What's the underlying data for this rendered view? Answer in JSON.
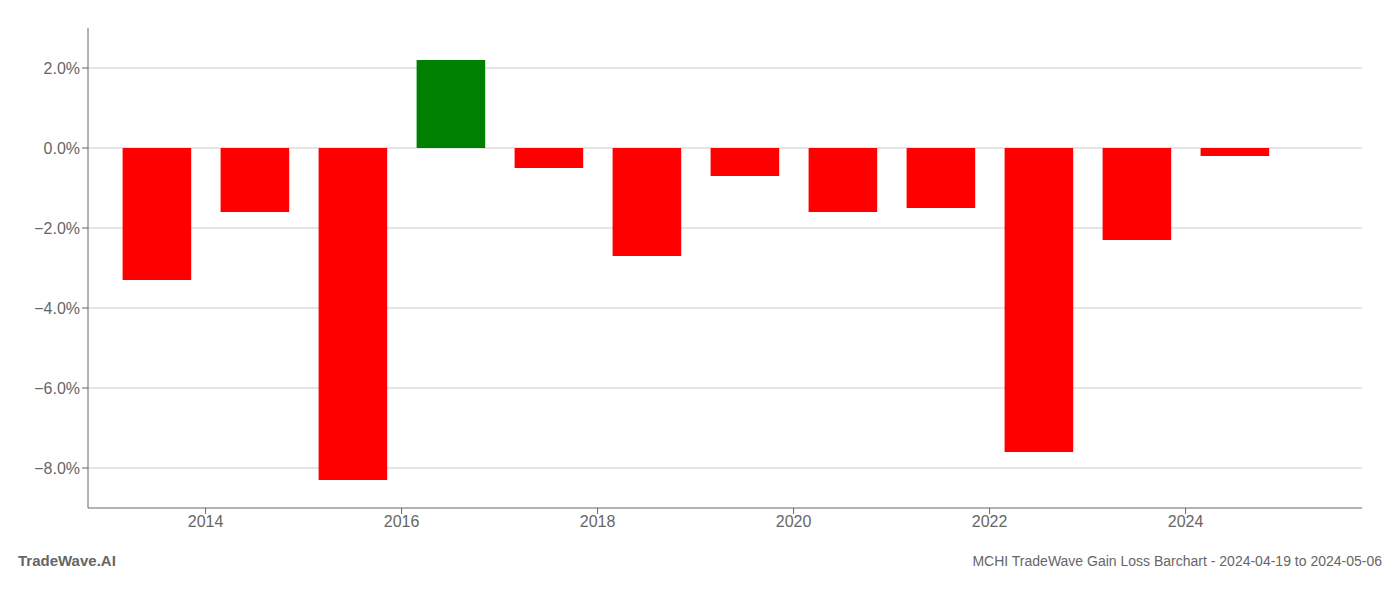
{
  "chart_data": {
    "type": "bar",
    "x": [
      2013.5,
      2014.5,
      2015.5,
      2016.5,
      2017.5,
      2018.5,
      2019.5,
      2020.5,
      2021.5,
      2022.5,
      2023.5,
      2024.5
    ],
    "values": [
      -3.3,
      -1.6,
      -8.3,
      2.2,
      -0.5,
      -2.7,
      -0.7,
      -1.6,
      -1.5,
      -7.6,
      -2.3,
      -0.2
    ],
    "colors": [
      "#ff0000",
      "#ff0000",
      "#ff0000",
      "#008000",
      "#ff0000",
      "#ff0000",
      "#ff0000",
      "#ff0000",
      "#ff0000",
      "#ff0000",
      "#ff0000",
      "#ff0000"
    ],
    "xlim": [
      2012.8,
      2025.8
    ],
    "xticks": [
      2014,
      2016,
      2018,
      2020,
      2022,
      2024
    ],
    "ylim": [
      -9.0,
      3.0
    ],
    "yticks": [
      {
        "value": -8.0,
        "label": "−8.0%"
      },
      {
        "value": -6.0,
        "label": "−6.0%"
      },
      {
        "value": -4.0,
        "label": "−4.0%"
      },
      {
        "value": -2.0,
        "label": "−2.0%"
      },
      {
        "value": 0.0,
        "label": "0.0%"
      },
      {
        "value": 2.0,
        "label": "2.0%"
      }
    ],
    "grid": true,
    "annotations": [
      "TradeWave.AI",
      "MCHI TradeWave Gain Loss Barchart - 2024-04-19 to 2024-05-06"
    ]
  }
}
